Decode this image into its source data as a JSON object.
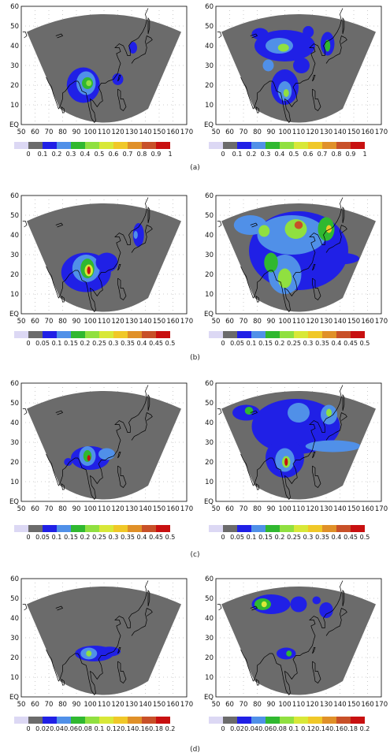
{
  "map": {
    "x_ticks": [
      "50",
      "60",
      "70",
      "80",
      "90",
      "100",
      "110",
      "120",
      "130",
      "140",
      "150",
      "160",
      "170"
    ],
    "y_ticks": [
      "EQ",
      "10",
      "20",
      "30",
      "40",
      "50",
      "60"
    ]
  },
  "colors": {
    "mask": "#6b6b6b",
    "coast": "#000000",
    "palette": [
      "#dcd8f4",
      "#6b6b6b",
      "#2020e6",
      "#5090e8",
      "#30b830",
      "#90e040",
      "#d8e838",
      "#f0c828",
      "#e09028",
      "#c85028",
      "#c81010"
    ]
  },
  "rows": [
    {
      "caption": "(a)",
      "scale": [
        "0",
        "0.1",
        "0.2",
        "0.3",
        "0.4",
        "0.5",
        "0.6",
        "0.7",
        "0.8",
        "0.9",
        "1"
      ],
      "panels": [
        {
          "id": "a-left",
          "blobs": [
            {
              "cx": 95,
              "cy": 20,
              "rx": 12,
              "ry": 9,
              "c": 2
            },
            {
              "cx": 97,
              "cy": 21,
              "rx": 7,
              "ry": 6,
              "c": 3
            },
            {
              "cx": 98,
              "cy": 21,
              "rx": 4,
              "ry": 3,
              "c": 4
            },
            {
              "cx": 99,
              "cy": 21,
              "rx": 2,
              "ry": 1.5,
              "c": 5
            },
            {
              "cx": 120,
              "cy": 23,
              "rx": 4,
              "ry": 3,
              "c": 2
            },
            {
              "cx": 131,
              "cy": 39,
              "rx": 3,
              "ry": 3,
              "c": 2
            }
          ]
        },
        {
          "id": "a-right",
          "blobs": [
            {
              "cx": 100,
              "cy": 40,
              "rx": 22,
              "ry": 8,
              "c": 2
            },
            {
              "cx": 96,
              "cy": 40,
              "rx": 10,
              "ry": 4,
              "c": 3
            },
            {
              "cx": 99,
              "cy": 39,
              "rx": 4,
              "ry": 2,
              "c": 5
            },
            {
              "cx": 82,
              "cy": 46,
              "rx": 6,
              "ry": 3,
              "c": 2
            },
            {
              "cx": 117,
              "cy": 47,
              "rx": 4,
              "ry": 3,
              "c": 2
            },
            {
              "cx": 131,
              "cy": 41,
              "rx": 5,
              "ry": 6,
              "c": 2
            },
            {
              "cx": 131,
              "cy": 40,
              "rx": 2,
              "ry": 3,
              "c": 4
            },
            {
              "cx": 100,
              "cy": 19,
              "rx": 10,
              "ry": 9,
              "c": 2
            },
            {
              "cx": 100,
              "cy": 17,
              "rx": 5,
              "ry": 5,
              "c": 3
            },
            {
              "cx": 101,
              "cy": 16,
              "rx": 2,
              "ry": 2,
              "c": 5
            },
            {
              "cx": 112,
              "cy": 30,
              "rx": 6,
              "ry": 4,
              "c": 2
            },
            {
              "cx": 88,
              "cy": 30,
              "rx": 4,
              "ry": 3,
              "c": 3
            }
          ]
        }
      ]
    },
    {
      "caption": "(b)",
      "scale": [
        "0",
        "0.05",
        "0.1",
        "0.15",
        "0.2",
        "0.25",
        "0.3",
        "0.35",
        "0.4",
        "0.45",
        "0.5"
      ],
      "panels": [
        {
          "id": "b-left",
          "blobs": [
            {
              "cx": 97,
              "cy": 21,
              "rx": 18,
              "ry": 10,
              "c": 2
            },
            {
              "cx": 97,
              "cy": 23,
              "rx": 10,
              "ry": 7,
              "c": 3
            },
            {
              "cx": 98,
              "cy": 23,
              "rx": 5,
              "ry": 5,
              "c": 4
            },
            {
              "cx": 99,
              "cy": 22,
              "rx": 3,
              "ry": 3,
              "c": 6
            },
            {
              "cx": 99,
              "cy": 22,
              "rx": 1.3,
              "ry": 2,
              "c": 10
            },
            {
              "cx": 112,
              "cy": 26,
              "rx": 8,
              "ry": 5,
              "c": 2
            },
            {
              "cx": 135,
              "cy": 40,
              "rx": 4,
              "ry": 6,
              "c": 2
            },
            {
              "cx": 133,
              "cy": 40,
              "rx": 1.5,
              "ry": 2,
              "c": 3
            }
          ]
        },
        {
          "id": "b-right",
          "blobs": [
            {
              "cx": 110,
              "cy": 32,
              "rx": 36,
              "ry": 20,
              "c": 2
            },
            {
              "cx": 105,
              "cy": 40,
              "rx": 25,
              "ry": 10,
              "c": 3
            },
            {
              "cx": 108,
              "cy": 43,
              "rx": 8,
              "ry": 5,
              "c": 5
            },
            {
              "cx": 110,
              "cy": 45,
              "rx": 3,
              "ry": 2,
              "c": 9
            },
            {
              "cx": 130,
              "cy": 43,
              "rx": 6,
              "ry": 6,
              "c": 4
            },
            {
              "cx": 132,
              "cy": 43,
              "rx": 2,
              "ry": 2,
              "c": 7
            },
            {
              "cx": 100,
              "cy": 20,
              "rx": 12,
              "ry": 10,
              "c": 3
            },
            {
              "cx": 100,
              "cy": 18,
              "rx": 5,
              "ry": 5,
              "c": 5
            },
            {
              "cx": 90,
              "cy": 26,
              "rx": 5,
              "ry": 5,
              "c": 4
            },
            {
              "cx": 75,
              "cy": 45,
              "rx": 12,
              "ry": 5,
              "c": 3
            },
            {
              "cx": 140,
              "cy": 28,
              "rx": 14,
              "ry": 3,
              "c": 2
            },
            {
              "cx": 85,
              "cy": 42,
              "rx": 4,
              "ry": 3,
              "c": 5
            }
          ]
        }
      ]
    },
    {
      "caption": "(c)",
      "scale": [
        "0",
        "0.05",
        "0.1",
        "0.15",
        "0.2",
        "0.25",
        "0.3",
        "0.35",
        "0.4",
        "0.45",
        "0.5"
      ],
      "panels": [
        {
          "id": "c-left",
          "blobs": [
            {
              "cx": 100,
              "cy": 22,
              "rx": 14,
              "ry": 6,
              "c": 2
            },
            {
              "cx": 98,
              "cy": 23,
              "rx": 6,
              "ry": 5,
              "c": 3
            },
            {
              "cx": 98,
              "cy": 23,
              "rx": 3,
              "ry": 3,
              "c": 4
            },
            {
              "cx": 99,
              "cy": 22,
              "rx": 1.2,
              "ry": 1.5,
              "c": 10
            },
            {
              "cx": 112,
              "cy": 24,
              "rx": 6,
              "ry": 3,
              "c": 3
            },
            {
              "cx": 84,
              "cy": 20,
              "rx": 3,
              "ry": 2,
              "c": 2
            }
          ]
        },
        {
          "id": "c-right",
          "blobs": [
            {
              "cx": 108,
              "cy": 38,
              "rx": 32,
              "ry": 14,
              "c": 2
            },
            {
              "cx": 110,
              "cy": 45,
              "rx": 8,
              "ry": 5,
              "c": 3
            },
            {
              "cx": 132,
              "cy": 44,
              "rx": 6,
              "ry": 5,
              "c": 3
            },
            {
              "cx": 132,
              "cy": 45,
              "rx": 2,
              "ry": 2,
              "c": 5
            },
            {
              "cx": 100,
              "cy": 22,
              "rx": 14,
              "ry": 10,
              "c": 2
            },
            {
              "cx": 100,
              "cy": 21,
              "rx": 7,
              "ry": 6,
              "c": 3
            },
            {
              "cx": 101,
              "cy": 20,
              "rx": 3,
              "ry": 3,
              "c": 5
            },
            {
              "cx": 101,
              "cy": 20,
              "rx": 1.2,
              "ry": 2,
              "c": 10
            },
            {
              "cx": 135,
              "cy": 28,
              "rx": 20,
              "ry": 3,
              "c": 3
            },
            {
              "cx": 72,
              "cy": 45,
              "rx": 10,
              "ry": 4,
              "c": 2
            },
            {
              "cx": 74,
              "cy": 46,
              "rx": 3,
              "ry": 2,
              "c": 4
            }
          ]
        }
      ]
    },
    {
      "caption": "(d)",
      "scale": [
        "0",
        "0.02",
        "0.04",
        "0.06",
        "0.08",
        "0.1",
        "0.12",
        "0.14",
        "0.16",
        "0.18",
        "0.2"
      ],
      "panels": [
        {
          "id": "d-left",
          "blobs": [
            {
              "cx": 103,
              "cy": 22,
              "rx": 14,
              "ry": 4,
              "c": 2
            },
            {
              "cx": 99,
              "cy": 22,
              "rx": 6,
              "ry": 3,
              "c": 3
            },
            {
              "cx": 99,
              "cy": 22,
              "rx": 2,
              "ry": 1.5,
              "c": 5
            },
            {
              "cx": 114,
              "cy": 23,
              "rx": 8,
              "ry": 2.5,
              "c": 2
            }
          ]
        },
        {
          "id": "d-right",
          "blobs": [
            {
              "cx": 90,
              "cy": 47,
              "rx": 14,
              "ry": 5,
              "c": 2
            },
            {
              "cx": 84,
              "cy": 47,
              "rx": 6,
              "ry": 3,
              "c": 4
            },
            {
              "cx": 85,
              "cy": 47,
              "rx": 2,
              "ry": 1.5,
              "c": 6
            },
            {
              "cx": 110,
              "cy": 47,
              "rx": 6,
              "ry": 4,
              "c": 2
            },
            {
              "cx": 130,
              "cy": 44,
              "rx": 5,
              "ry": 4,
              "c": 2
            },
            {
              "cx": 101,
              "cy": 22,
              "rx": 7,
              "ry": 3,
              "c": 2
            },
            {
              "cx": 103,
              "cy": 22,
              "rx": 2,
              "ry": 1.5,
              "c": 4
            },
            {
              "cx": 123,
              "cy": 49,
              "rx": 3,
              "ry": 2,
              "c": 2
            }
          ]
        }
      ]
    }
  ]
}
